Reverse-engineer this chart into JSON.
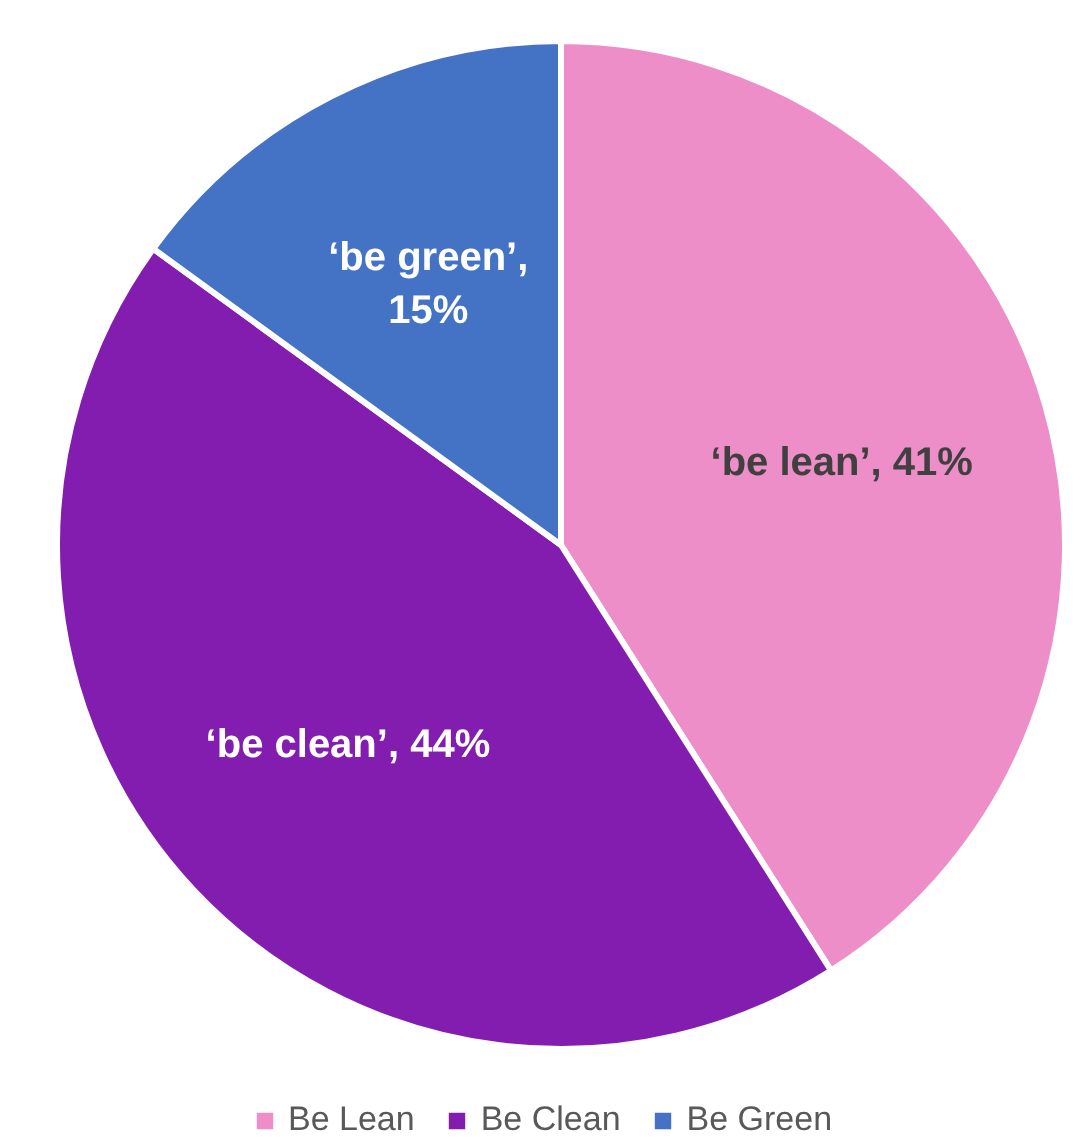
{
  "chart_data": {
    "type": "pie",
    "categories": [
      "Be Lean",
      "Be Clean",
      "Be Green"
    ],
    "values": [
      41,
      44,
      15
    ],
    "colors": [
      "#ee8ec8",
      "#821db0",
      "#4472c4"
    ],
    "value_labels": [
      "‘be lean’, 41%",
      "‘be clean’, 44%",
      "‘be green’,\n15%"
    ],
    "legend": "bottom"
  }
}
